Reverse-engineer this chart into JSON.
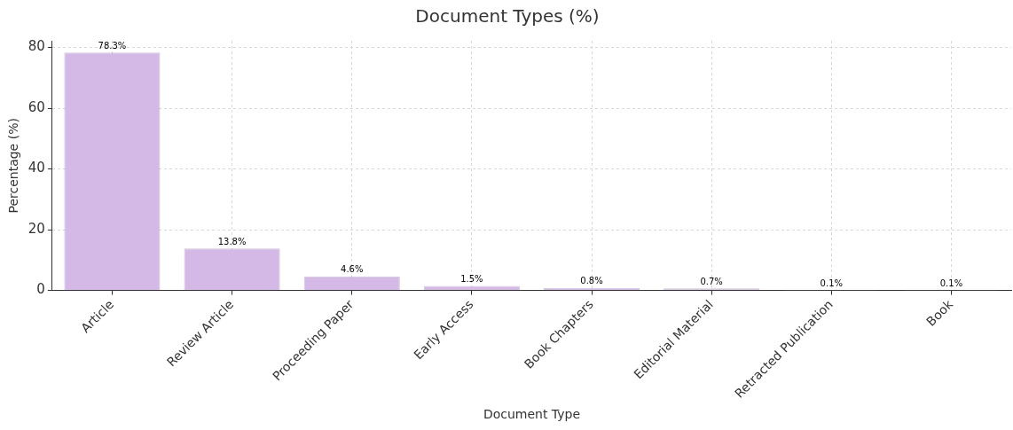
{
  "chart_data": {
    "type": "bar",
    "title": "Document Types (%)",
    "xlabel": "Document Type",
    "ylabel": "Percentage (%)",
    "categories": [
      "Article",
      "Review Article",
      "Proceeding Paper",
      "Early Access",
      "Book Chapters",
      "Editorial Material",
      "Retracted Publication",
      "Book"
    ],
    "values": [
      78.3,
      13.8,
      4.6,
      1.5,
      0.8,
      0.7,
      0.1,
      0.1
    ],
    "value_labels": [
      "78.3%",
      "13.8%",
      "4.6%",
      "1.5%",
      "0.8%",
      "0.7%",
      "0.1%",
      "0.1%"
    ],
    "color": "#d4b8e6",
    "ylim": [
      0,
      82.2
    ],
    "yticks": [
      0,
      20,
      40,
      60,
      80
    ],
    "grid": true
  }
}
